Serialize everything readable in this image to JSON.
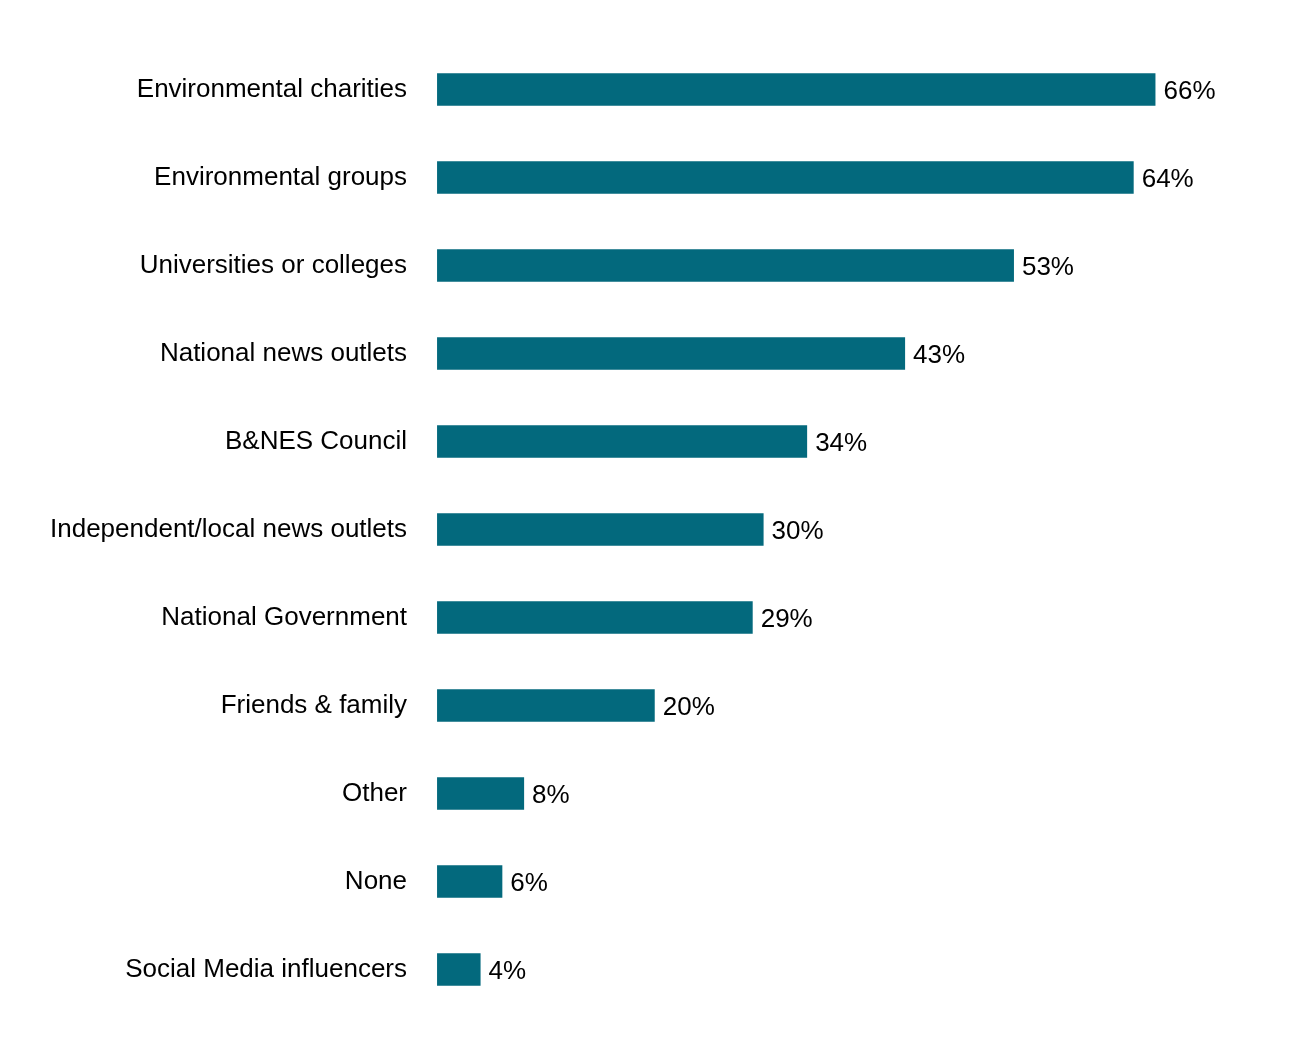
{
  "chart_data": {
    "type": "bar",
    "orientation": "horizontal",
    "categories": [
      "Environmental charities",
      "Environmental groups",
      "Universities or colleges",
      "National news outlets",
      "B&NES Council",
      "Independent/local news outlets",
      "National Government",
      "Friends & family",
      "Other",
      "None",
      "Social Media influencers"
    ],
    "values": [
      66,
      64,
      53,
      43,
      34,
      30,
      29,
      20,
      8,
      6,
      4
    ],
    "value_labels": [
      "66%",
      "64%",
      "53%",
      "43%",
      "34%",
      "30%",
      "29%",
      "20%",
      "8%",
      "6%",
      "4%"
    ],
    "color": "#03697d"
  }
}
